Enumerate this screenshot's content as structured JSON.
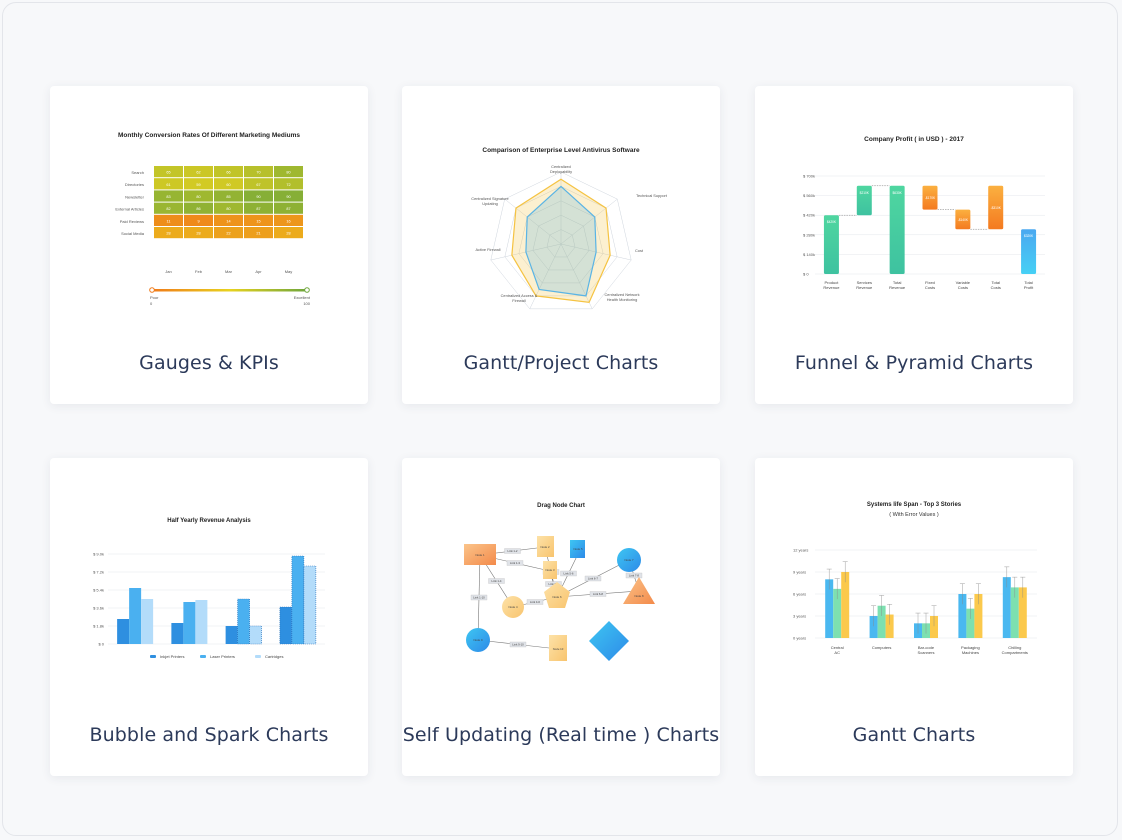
{
  "cards": [
    {
      "label": "Gauges & KPIs"
    },
    {
      "label": "Gantt/Project Charts"
    },
    {
      "label": "Funnel & Pyramid Charts"
    },
    {
      "label": "Bubble and Spark Charts"
    },
    {
      "label": "Self Updating (Real time ) Charts"
    },
    {
      "label": "Gantt Charts"
    }
  ],
  "chart_data": [
    {
      "type": "heatmap",
      "title": "Monthly Conversion Rates Of Different Marketing Mediums",
      "rows": [
        "Search",
        "Directories",
        "Newsletter",
        "External Articles",
        "Paid Reviews",
        "Social Media"
      ],
      "columns": [
        "Jan",
        "Feb",
        "Mar",
        "Apr",
        "May"
      ],
      "values": [
        [
          65,
          62,
          66,
          70,
          80
        ],
        [
          61,
          59,
          60,
          67,
          72
        ],
        [
          83,
          80,
          85,
          90,
          90
        ],
        [
          82,
          86,
          80,
          87,
          87
        ],
        [
          11,
          9,
          14,
          15,
          16
        ],
        [
          28,
          28,
          22,
          21,
          28
        ]
      ],
      "gradient_start_label": "Poor",
      "gradient_start_value": "0",
      "gradient_end_label": "Excellent",
      "gradient_end_value": "100",
      "colors": {
        "poor": "#f07a19",
        "mid": "#e8d21f",
        "excellent": "#6ea63c"
      }
    },
    {
      "type": "radar",
      "title": "Comparison of Enterprise Level Antivirus Software",
      "axes": [
        "Centralized Deployability",
        "Technical Support",
        "Cost",
        "Centralized Network Health Monitoring",
        "Centralized Access & Firewall",
        "Active Firewall",
        "Centralized Signature Updating"
      ],
      "series": [
        {
          "values": [
            9,
            8,
            7,
            9,
            8,
            7,
            8
          ],
          "color": "#f5c342"
        },
        {
          "values": [
            8,
            6,
            5,
            8,
            7,
            5,
            6
          ],
          "color": "#5ab4e5"
        }
      ]
    },
    {
      "type": "bar",
      "title": "Company Profit ( in USD ) - 2017",
      "categories": [
        "Product Revenue",
        "Services Revenue",
        "Total Revenue",
        "Fixed Costs",
        "Variable Costs",
        "Total Costs",
        "Total Profit"
      ],
      "ticks": [
        "$ 700k",
        "$ 560k",
        "$ 420k",
        "$ 280k",
        "$ 0"
      ],
      "tick_140k": "$ 140k",
      "values": [
        420,
        210,
        630,
        -170,
        -140,
        -310,
        320
      ],
      "value_labels": [
        "$420K",
        "$210K",
        "$630K",
        "-$170K",
        "-$140K",
        "-$310K",
        "$320K"
      ]
    },
    {
      "type": "bar",
      "title": "Half Yearly Revenue Analysis",
      "ticks": [
        "$ 9.0k",
        "$ 7.2k",
        "$ 5.4k",
        "$ 3.6k",
        "$ 1.8k",
        "$ 0"
      ],
      "series": [
        {
          "name": "Inkjet Printers",
          "values": [
            2.5,
            2.1,
            1.8,
            3.7
          ],
          "color": "#2e8fe0"
        },
        {
          "name": "Laser Printers",
          "values": [
            5.6,
            4.2,
            4.5,
            8.8
          ],
          "color": "#4ab0f0"
        },
        {
          "name": "Cartridges",
          "values": [
            4.5,
            4.4,
            1.8,
            7.8
          ],
          "color": "#b3dcfa"
        }
      ]
    },
    {
      "type": "diagram",
      "title": "Drag Node Chart",
      "nodes": [
        "Node 1",
        "Node 2",
        "Node 3",
        "Node 4",
        "Node 5",
        "Node 6",
        "Node 7",
        "Node 8",
        "Node 9",
        "Node 10"
      ],
      "links": [
        "Link 1-2",
        "Link 1-3",
        "Link 1-4",
        "Link 2-6",
        "Link 3-6",
        "Link 4-6",
        "Link 5-6",
        "Link 6-7",
        "Link 6-8",
        "Link 7-8",
        "Link 9-10",
        "Link 1-10"
      ]
    },
    {
      "type": "bar",
      "title": "Systems life Span - Top 3 Stories",
      "subtitle": "( With Error Values )",
      "categories": [
        "Central AC",
        "Computers",
        "Bar-code Scanners",
        "Packaging Machines",
        "Chilling Compartments"
      ],
      "ticks": [
        "12 years",
        "9 years",
        "6 years",
        "3 years",
        "0 years"
      ],
      "series": [
        {
          "values": [
            8,
            3,
            2,
            6,
            8.3
          ],
          "color": "#4ab8f0"
        },
        {
          "values": [
            6.7,
            4.4,
            2,
            4,
            6.9
          ],
          "color": "#7de0b0"
        },
        {
          "values": [
            9,
            3.2,
            3,
            6,
            6.9
          ],
          "color": "#fbc94c"
        }
      ]
    }
  ]
}
